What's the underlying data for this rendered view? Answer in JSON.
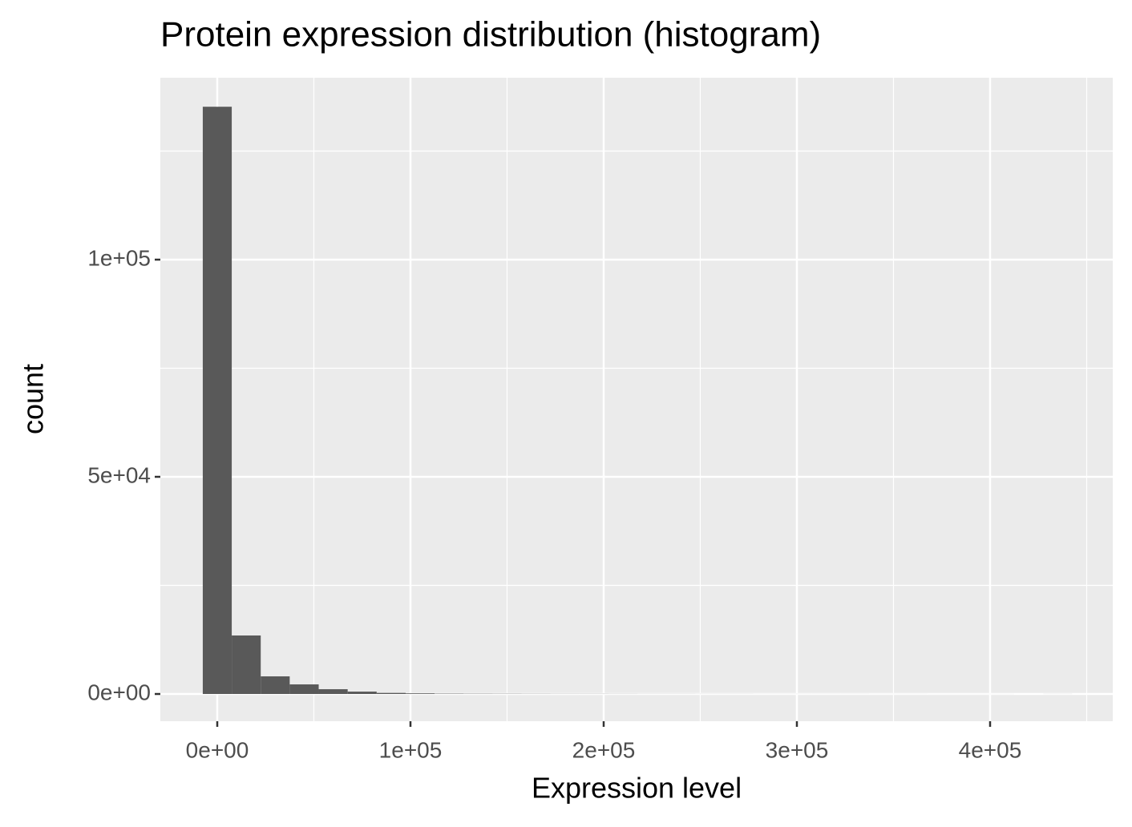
{
  "chart_data": {
    "type": "histogram",
    "title": "Protein expression distribution (histogram)",
    "x_label": "Expression level",
    "y_label": "count",
    "bins": [
      -7500,
      7500,
      22500,
      37500,
      52500,
      67500,
      82500,
      97500,
      112500,
      127500,
      142500,
      157500,
      172500,
      187500,
      202500,
      217500,
      232500,
      247500,
      262500,
      277500,
      292500,
      307500,
      322500,
      337500,
      352500,
      367500,
      382500,
      397500,
      412500,
      427500,
      442500
    ],
    "values": [
      135200,
      13470,
      4060,
      2210,
      1100,
      550,
      250,
      150,
      80,
      60,
      50,
      40,
      30,
      30,
      25,
      20,
      20,
      15,
      15,
      12,
      10,
      10,
      10,
      8,
      8,
      6,
      6,
      5,
      0,
      10
    ],
    "color": "#595959",
    "xlim": [
      -29460,
      463490
    ],
    "ylim": [
      -6270,
      141880
    ],
    "xticks": [
      {
        "value": 0,
        "label": "0e+00"
      },
      {
        "value": 100000,
        "label": "1e+05"
      },
      {
        "value": 200000,
        "label": "2e+05"
      },
      {
        "value": 300000,
        "label": "3e+05"
      },
      {
        "value": 400000,
        "label": "4e+05"
      }
    ],
    "yticks": [
      {
        "value": 0,
        "label": "0e+00"
      },
      {
        "value": 50000,
        "label": "5e+04"
      },
      {
        "value": 100000,
        "label": "1e+05"
      }
    ],
    "grid": true
  }
}
